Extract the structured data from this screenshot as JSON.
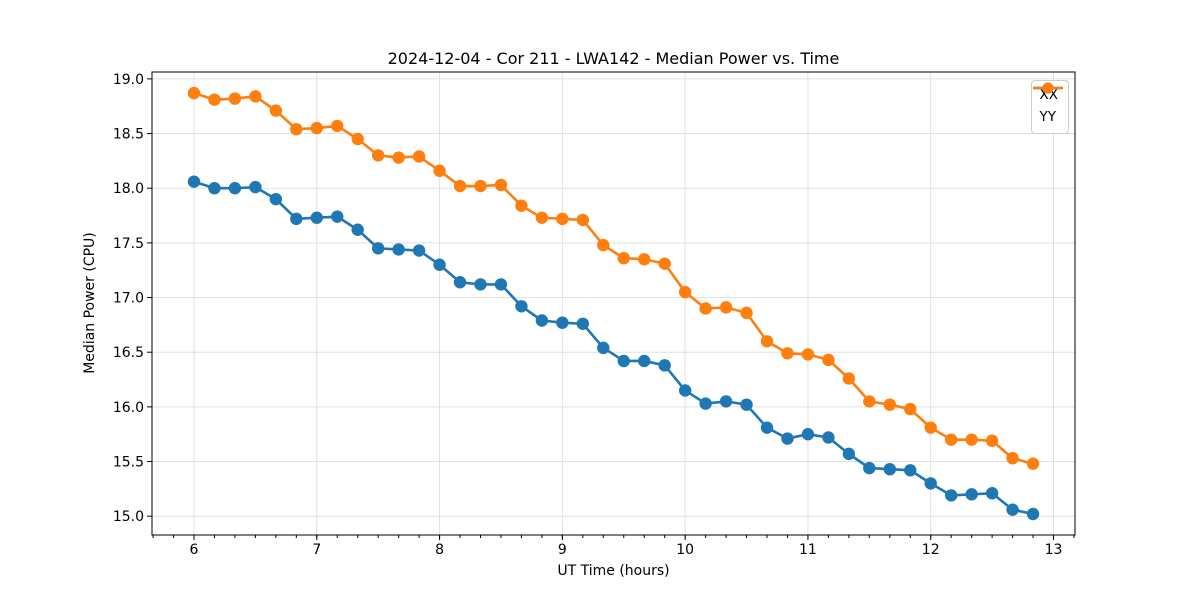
{
  "chart_data": {
    "type": "line",
    "title": "2024-12-04 - Cor 211 - LWA142 - Median Power vs. Time",
    "xlabel": "UT Time (hours)",
    "ylabel": "Median Power (CPU)",
    "xlim": [
      5.658,
      13.175
    ],
    "ylim": [
      14.828,
      19.063
    ],
    "xticks": [
      6,
      7,
      8,
      9,
      10,
      11,
      12,
      13
    ],
    "yticks": [
      15.0,
      15.5,
      16.0,
      16.5,
      17.0,
      17.5,
      18.0,
      18.5,
      19.0
    ],
    "x_minor_step": 0.166667,
    "grid": true,
    "grid_color": "#e0e0e0",
    "legend_position": "upper right",
    "x": [
      6.0,
      6.1667,
      6.3333,
      6.5,
      6.6667,
      6.8333,
      7.0,
      7.1667,
      7.3333,
      7.5,
      7.6667,
      7.8333,
      8.0,
      8.1667,
      8.3333,
      8.5,
      8.6667,
      8.8333,
      9.0,
      9.1667,
      9.3333,
      9.5,
      9.6667,
      9.8333,
      10.0,
      10.1667,
      10.3333,
      10.5,
      10.6667,
      10.8333,
      11.0,
      11.1667,
      11.3333,
      11.5,
      11.6667,
      11.8333,
      12.0,
      12.1667,
      12.3333,
      12.5,
      12.6667,
      12.8333
    ],
    "series": [
      {
        "name": "XX",
        "color": "#1f77b4",
        "values": [
          18.06,
          18.0,
          18.0,
          18.01,
          17.9,
          17.72,
          17.73,
          17.74,
          17.62,
          17.45,
          17.44,
          17.43,
          17.3,
          17.14,
          17.12,
          17.12,
          16.92,
          16.79,
          16.77,
          16.76,
          16.54,
          16.42,
          16.42,
          16.38,
          16.15,
          16.03,
          16.05,
          16.02,
          15.81,
          15.71,
          15.75,
          15.72,
          15.57,
          15.44,
          15.43,
          15.42,
          15.3,
          15.19,
          15.2,
          15.21,
          15.06,
          15.02
        ]
      },
      {
        "name": "YY",
        "color": "#ff7f0e",
        "values": [
          18.87,
          18.81,
          18.82,
          18.84,
          18.71,
          18.54,
          18.55,
          18.57,
          18.45,
          18.3,
          18.28,
          18.29,
          18.16,
          18.02,
          18.02,
          18.03,
          17.84,
          17.73,
          17.72,
          17.71,
          17.48,
          17.36,
          17.35,
          17.31,
          17.05,
          16.9,
          16.91,
          16.86,
          16.6,
          16.49,
          16.48,
          16.43,
          16.26,
          16.05,
          16.02,
          15.98,
          15.81,
          15.7,
          15.7,
          15.69,
          15.53,
          15.48
        ]
      }
    ]
  }
}
